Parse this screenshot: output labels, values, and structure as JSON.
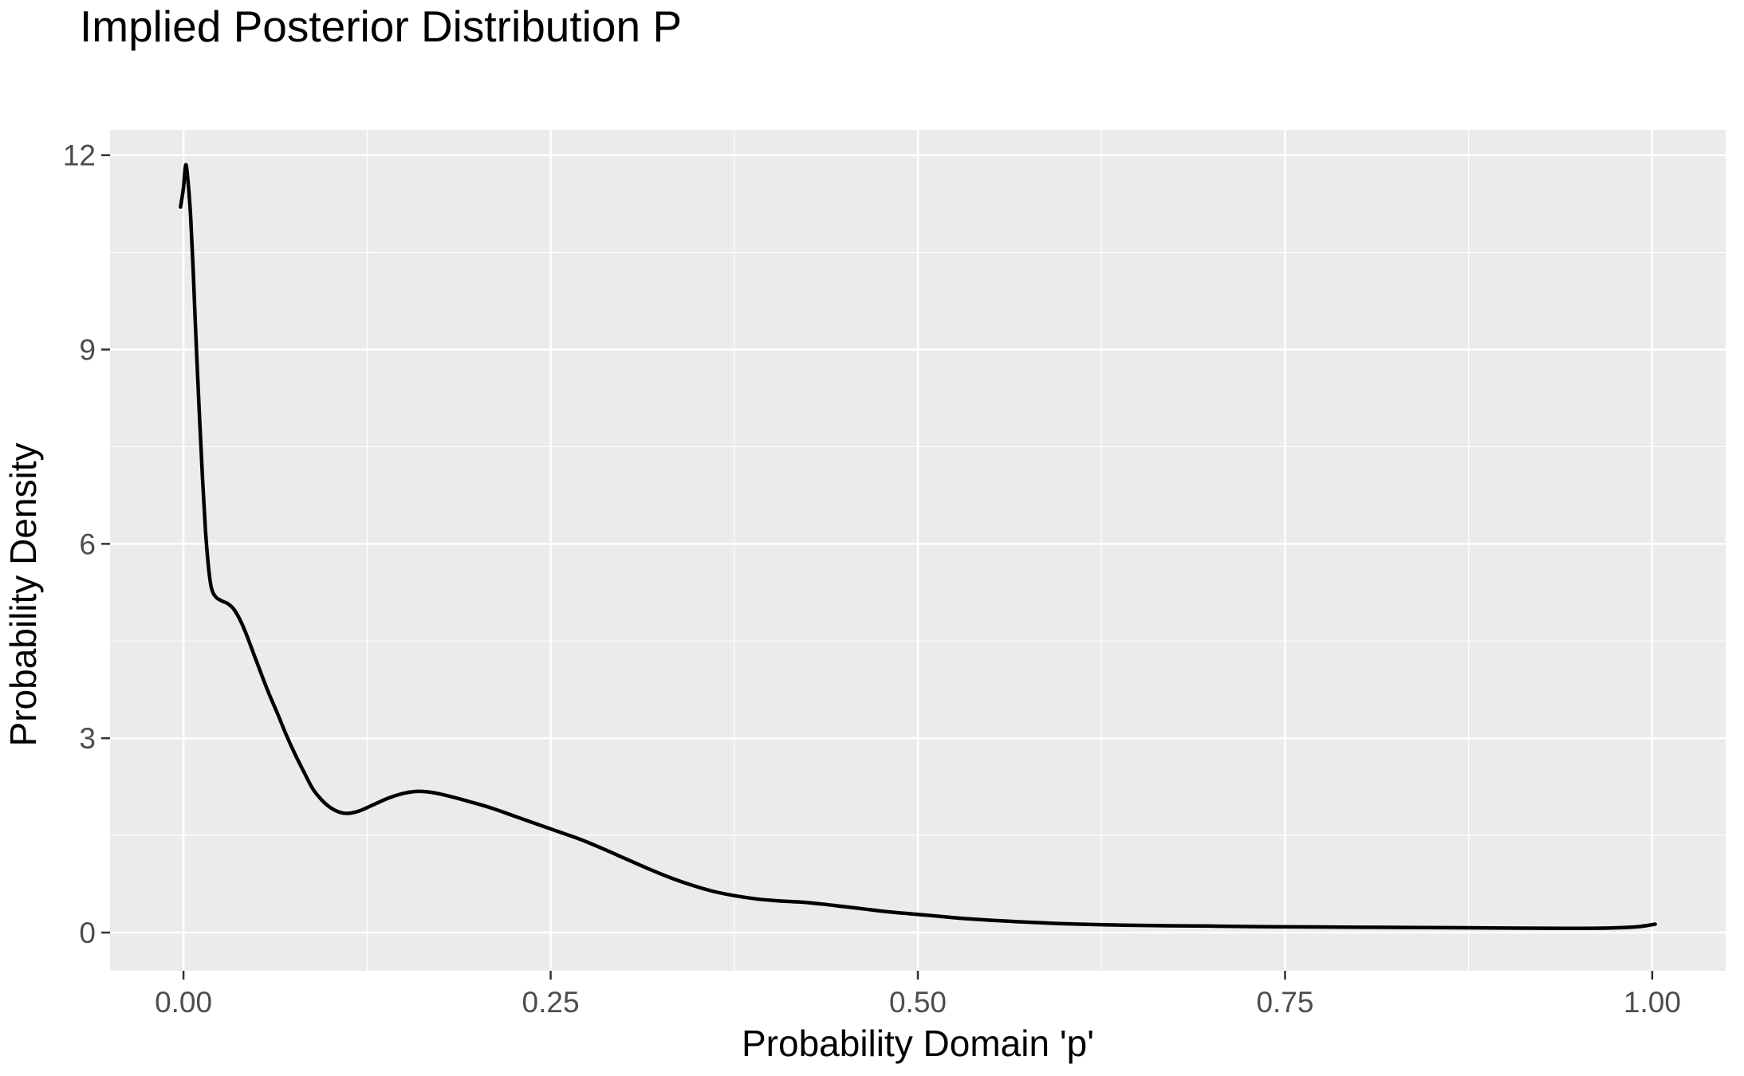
{
  "title": "Implied Posterior Distribution P",
  "chart_data": {
    "type": "line",
    "title": "Implied Posterior Distribution P",
    "xlabel": "Probability Domain 'p'",
    "ylabel": "Probability Density",
    "xlim": [
      -0.05,
      1.05
    ],
    "ylim": [
      -0.59,
      12.39
    ],
    "grid": "major-and-minor-white-on-grey-panel",
    "legend_position": "none",
    "x_ticks": {
      "values": [
        0,
        0.25,
        0.5,
        0.75,
        1.0
      ],
      "labels": [
        "0.00",
        "0.25",
        "0.50",
        "0.75",
        "1.00"
      ]
    },
    "y_ticks": {
      "values": [
        0,
        3,
        6,
        9,
        12
      ],
      "labels": [
        "0",
        "3",
        "6",
        "9",
        "12"
      ]
    },
    "x_minor_ticks": [
      0.125,
      0.375,
      0.625,
      0.875
    ],
    "y_minor_ticks": [
      1.5,
      4.5,
      7.5,
      10.5
    ],
    "colors": {
      "line": "#000000",
      "panel_background": "#EBEBEB",
      "gridline": "#FFFFFF",
      "tick_label": "#4D4D4D",
      "tick_mark": "#333333",
      "title_text": "#000000"
    },
    "series": [
      {
        "name": "posterior-density-curve",
        "points": [
          [
            -0.002,
            11.2
          ],
          [
            0.0,
            11.5
          ],
          [
            0.0015,
            11.85
          ],
          [
            0.003,
            11.62
          ],
          [
            0.005,
            11.0
          ],
          [
            0.007,
            10.0
          ],
          [
            0.009,
            8.9
          ],
          [
            0.011,
            7.9
          ],
          [
            0.013,
            7.0
          ],
          [
            0.015,
            6.2
          ],
          [
            0.017,
            5.65
          ],
          [
            0.019,
            5.32
          ],
          [
            0.022,
            5.18
          ],
          [
            0.026,
            5.12
          ],
          [
            0.03,
            5.08
          ],
          [
            0.034,
            5.0
          ],
          [
            0.038,
            4.85
          ],
          [
            0.042,
            4.65
          ],
          [
            0.047,
            4.35
          ],
          [
            0.052,
            4.05
          ],
          [
            0.058,
            3.7
          ],
          [
            0.064,
            3.38
          ],
          [
            0.07,
            3.05
          ],
          [
            0.076,
            2.75
          ],
          [
            0.082,
            2.48
          ],
          [
            0.088,
            2.22
          ],
          [
            0.094,
            2.05
          ],
          [
            0.1,
            1.93
          ],
          [
            0.106,
            1.86
          ],
          [
            0.112,
            1.84
          ],
          [
            0.12,
            1.88
          ],
          [
            0.13,
            1.98
          ],
          [
            0.14,
            2.08
          ],
          [
            0.15,
            2.15
          ],
          [
            0.16,
            2.18
          ],
          [
            0.17,
            2.16
          ],
          [
            0.182,
            2.1
          ],
          [
            0.195,
            2.02
          ],
          [
            0.21,
            1.92
          ],
          [
            0.225,
            1.8
          ],
          [
            0.24,
            1.68
          ],
          [
            0.255,
            1.56
          ],
          [
            0.27,
            1.44
          ],
          [
            0.285,
            1.3
          ],
          [
            0.3,
            1.15
          ],
          [
            0.315,
            1.0
          ],
          [
            0.33,
            0.86
          ],
          [
            0.345,
            0.74
          ],
          [
            0.36,
            0.64
          ],
          [
            0.375,
            0.57
          ],
          [
            0.39,
            0.52
          ],
          [
            0.405,
            0.49
          ],
          [
            0.42,
            0.47
          ],
          [
            0.435,
            0.44
          ],
          [
            0.45,
            0.4
          ],
          [
            0.465,
            0.36
          ],
          [
            0.48,
            0.32
          ],
          [
            0.495,
            0.29
          ],
          [
            0.51,
            0.26
          ],
          [
            0.53,
            0.22
          ],
          [
            0.55,
            0.19
          ],
          [
            0.57,
            0.165
          ],
          [
            0.59,
            0.145
          ],
          [
            0.61,
            0.13
          ],
          [
            0.64,
            0.115
          ],
          [
            0.67,
            0.105
          ],
          [
            0.7,
            0.1
          ],
          [
            0.74,
            0.09
          ],
          [
            0.78,
            0.085
          ],
          [
            0.82,
            0.08
          ],
          [
            0.86,
            0.075
          ],
          [
            0.9,
            0.07
          ],
          [
            0.94,
            0.065
          ],
          [
            0.97,
            0.07
          ],
          [
            0.99,
            0.09
          ],
          [
            1.002,
            0.13
          ]
        ]
      }
    ]
  }
}
